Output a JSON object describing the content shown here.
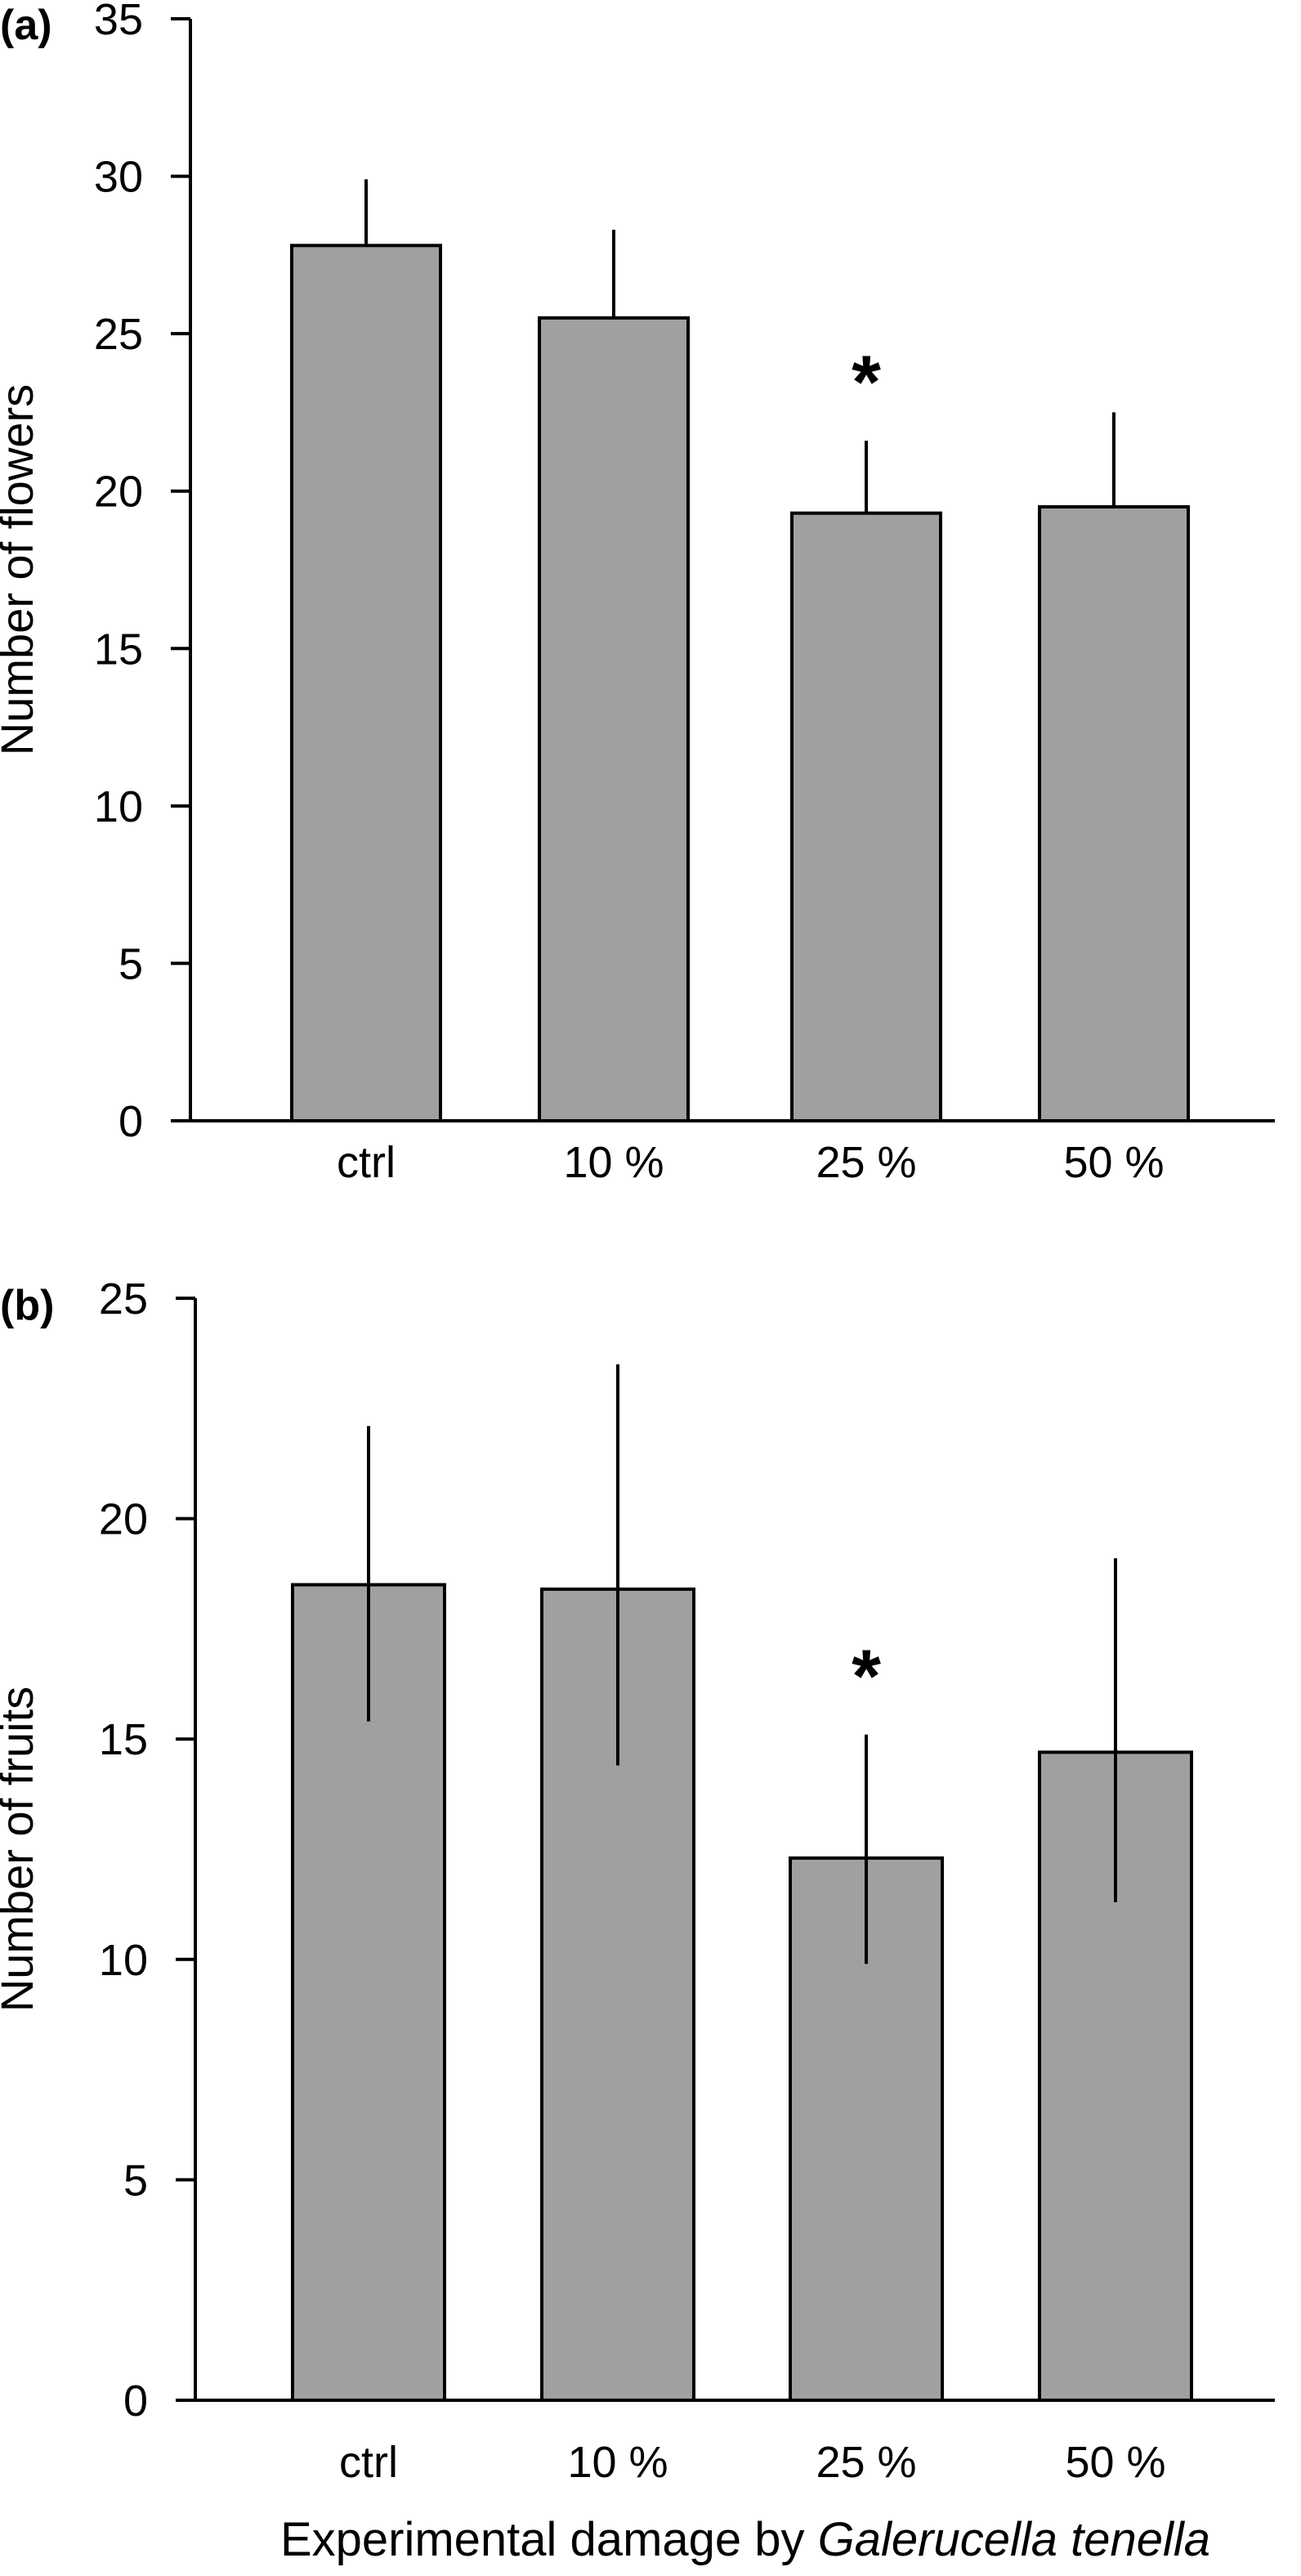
{
  "figure": {
    "xlabel_prefix": "Experimental damage by ",
    "xlabel_species": "Galerucella tenella"
  },
  "chart_data": [
    {
      "type": "bar",
      "panel_label": "(a)",
      "ylabel": "Number of flowers",
      "categories": [
        "ctrl",
        "10 %",
        "25 %",
        "50 %"
      ],
      "values": [
        27.8,
        25.5,
        19.3,
        19.5
      ],
      "error_upper": [
        29.9,
        28.3,
        21.6,
        22.5
      ],
      "error_lower": [
        null,
        null,
        null,
        null
      ],
      "significance": [
        "",
        "",
        "*",
        ""
      ],
      "ylim": [
        0,
        35
      ],
      "yticks": [
        0,
        5,
        10,
        15,
        20,
        25,
        30,
        35
      ],
      "bar_color": "#a0a0a0",
      "grid": false
    },
    {
      "type": "bar",
      "panel_label": "(b)",
      "ylabel": "Number of fruits",
      "categories": [
        "ctrl",
        "10 %",
        "25 %",
        "50 %"
      ],
      "values": [
        18.5,
        18.4,
        12.3,
        14.7
      ],
      "error_upper": [
        22.1,
        23.5,
        15.1,
        19.1
      ],
      "error_lower": [
        15.4,
        14.4,
        9.9,
        11.3
      ],
      "significance": [
        "",
        "",
        "*",
        ""
      ],
      "ylim": [
        0,
        25
      ],
      "yticks": [
        0,
        5,
        10,
        15,
        20,
        25
      ],
      "bar_color": "#a0a0a0",
      "grid": false
    }
  ]
}
